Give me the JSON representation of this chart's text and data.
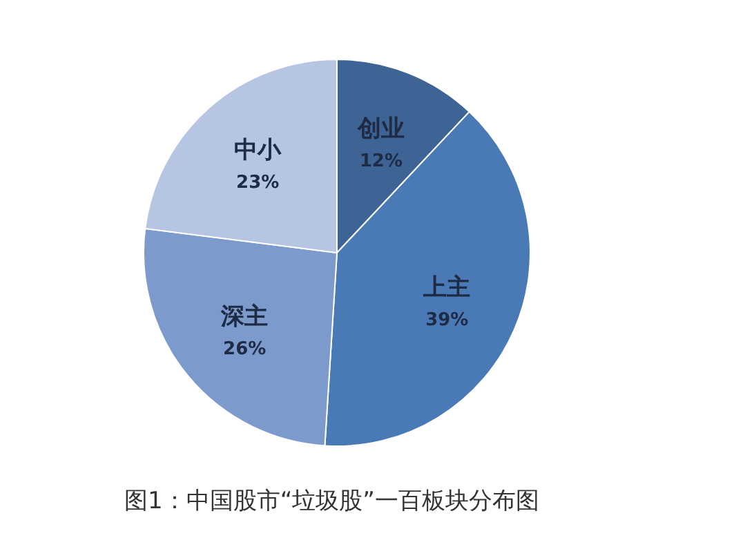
{
  "chart_data": {
    "type": "pie",
    "title": "图1：中国股市“垃圾股”一百板块分布图",
    "categories": [
      "创业",
      "上主",
      "深主",
      "中小"
    ],
    "values": [
      12,
      39,
      26,
      23
    ],
    "colors": [
      "#3e6395",
      "#4a7ab6",
      "#7c9acb",
      "#b6c6e2"
    ],
    "value_labels": [
      "12%",
      "39%",
      "26%",
      "23%"
    ]
  }
}
